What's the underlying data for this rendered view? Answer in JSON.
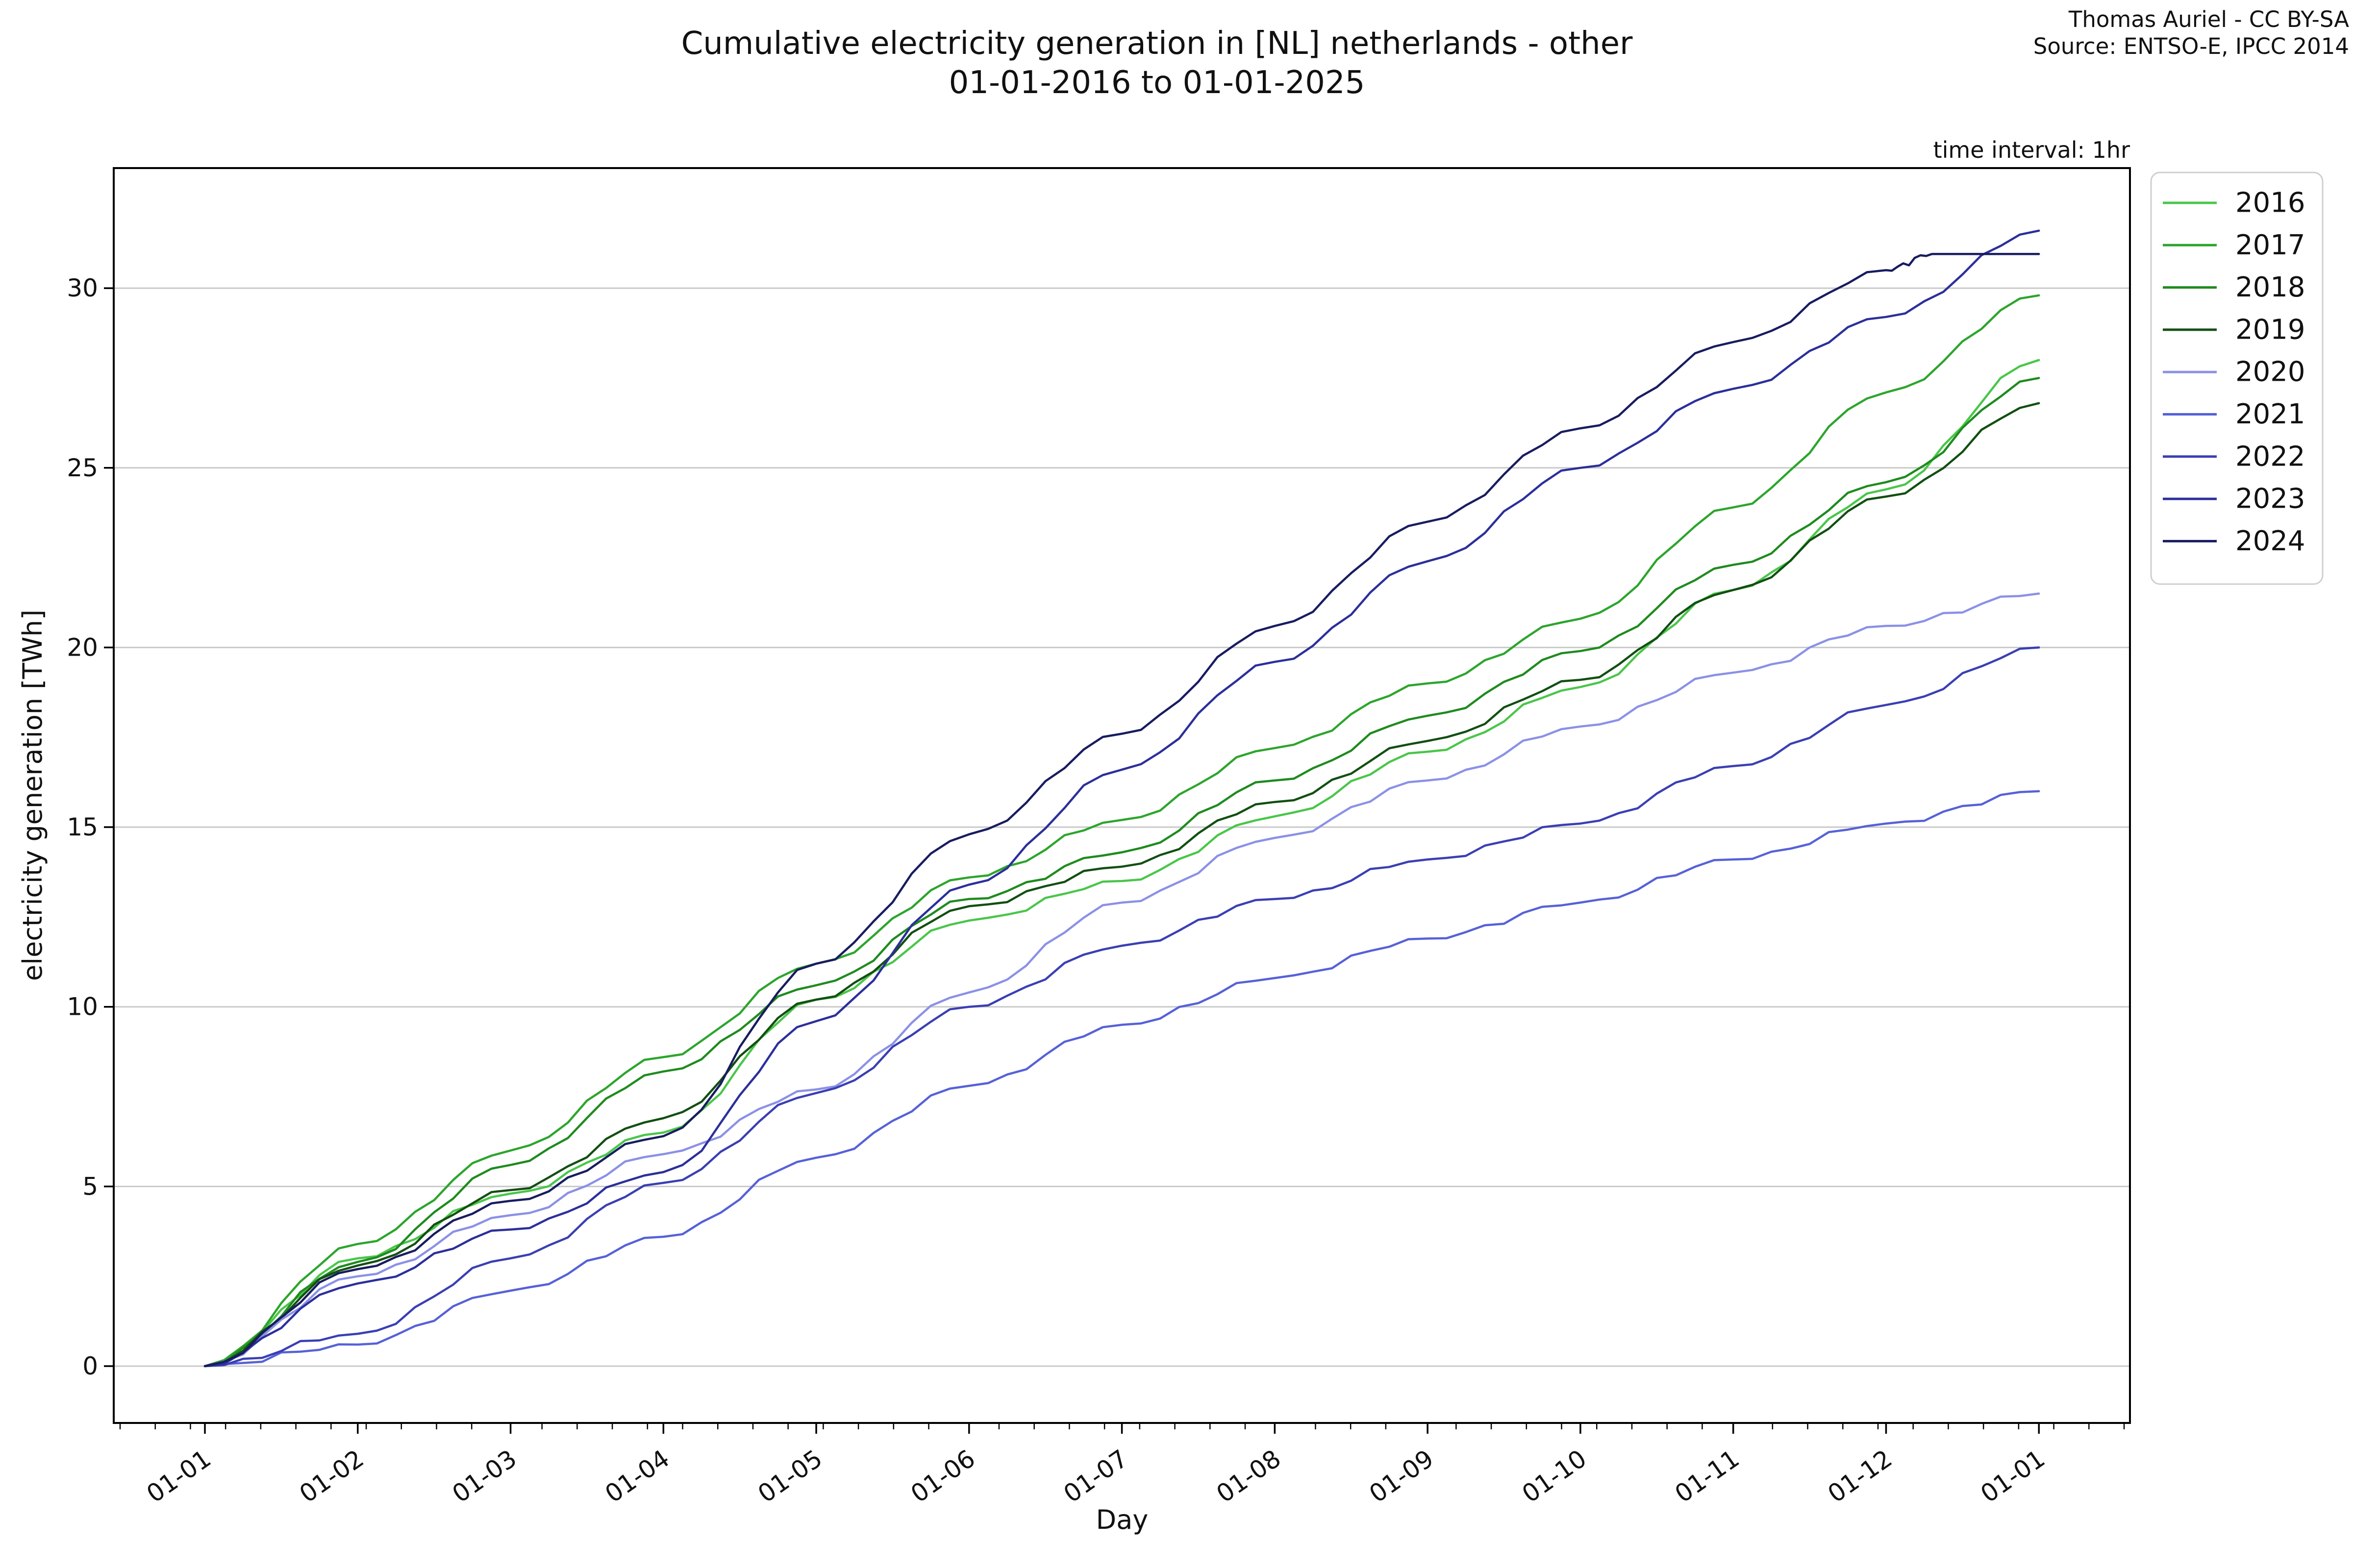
{
  "header": {
    "title_line1": "Cumulative electricity generation in [NL] netherlands - other",
    "title_line2": "01-01-2016 to 01-01-2025",
    "attribution_line1": "Thomas Auriel - CC BY-SA",
    "attribution_line2": "Source: ENTSO-E, IPCC 2014",
    "time_interval_note": "time interval: 1hr"
  },
  "chart_data": {
    "type": "line",
    "title": "Cumulative electricity generation in [NL] netherlands - other 01-01-2016 to 01-01-2025",
    "xlabel": "Day",
    "ylabel": "electricity generation [TWh]",
    "x_tick_labels": [
      "01-01",
      "01-02",
      "01-03",
      "01-04",
      "01-05",
      "01-06",
      "01-07",
      "01-08",
      "01-09",
      "01-10",
      "01-11",
      "01-12",
      "01-01"
    ],
    "y_ticks": [
      0,
      5,
      10,
      15,
      20,
      25,
      30
    ],
    "ylim": [
      -1.58,
      33.23
    ],
    "xlim_months": [
      -0.59,
      12.59
    ],
    "grid": "horizontal",
    "legend_position": "outside upper right",
    "axis_color": "#000000",
    "grid_color": "#c9c9c9",
    "series": [
      {
        "name": "2016",
        "color": "#49c649",
        "x_months": [
          0,
          1,
          2,
          3,
          4,
          5,
          6,
          7,
          8,
          9,
          10,
          11,
          12
        ],
        "values": [
          0,
          3.0,
          4.8,
          6.5,
          10.2,
          12.4,
          13.5,
          15.3,
          17.1,
          18.9,
          21.6,
          24.4,
          28.0
        ]
      },
      {
        "name": "2017",
        "color": "#2ca52c",
        "x_months": [
          0,
          1,
          2,
          3,
          4,
          5,
          6,
          7,
          8,
          9,
          10,
          11,
          12
        ],
        "values": [
          0,
          3.4,
          6.0,
          8.6,
          11.2,
          13.6,
          15.2,
          17.2,
          19.0,
          20.8,
          23.9,
          27.1,
          29.8
        ]
      },
      {
        "name": "2018",
        "color": "#1e8b1e",
        "x_months": [
          0,
          1,
          2,
          3,
          4,
          5,
          6,
          7,
          8,
          9,
          10,
          11,
          12
        ],
        "values": [
          0,
          2.9,
          5.6,
          8.2,
          10.6,
          13.0,
          14.3,
          16.3,
          18.1,
          19.9,
          22.3,
          24.6,
          27.5
        ]
      },
      {
        "name": "2019",
        "color": "#124f12",
        "x_months": [
          0,
          1,
          2,
          3,
          4,
          5,
          6,
          7,
          8,
          9,
          10,
          11,
          12
        ],
        "values": [
          0,
          2.8,
          4.9,
          6.9,
          10.2,
          12.8,
          13.9,
          15.7,
          17.4,
          19.1,
          21.6,
          24.2,
          26.8
        ]
      },
      {
        "name": "2020",
        "color": "#8b91e6",
        "x_months": [
          0,
          1,
          2,
          3,
          4,
          5,
          6,
          7,
          8,
          9,
          10,
          11,
          12
        ],
        "values": [
          0,
          2.5,
          4.2,
          5.9,
          7.7,
          10.4,
          12.9,
          14.7,
          16.3,
          17.8,
          19.3,
          20.6,
          21.5
        ]
      },
      {
        "name": "2021",
        "color": "#5661d8",
        "x_months": [
          0,
          1,
          2,
          3,
          4,
          5,
          6,
          7,
          8,
          9,
          10,
          11,
          12
        ],
        "values": [
          0,
          0.6,
          2.1,
          3.6,
          5.8,
          7.8,
          9.5,
          10.8,
          11.9,
          12.9,
          14.1,
          15.1,
          16.0
        ]
      },
      {
        "name": "2022",
        "color": "#3a3fb3",
        "x_months": [
          0,
          1,
          2,
          3,
          4,
          5,
          6,
          7,
          8,
          9,
          10,
          11,
          12
        ],
        "values": [
          0,
          0.9,
          3.0,
          5.1,
          7.6,
          10.0,
          11.7,
          13.0,
          14.1,
          15.1,
          16.7,
          18.4,
          20.0
        ]
      },
      {
        "name": "2023",
        "color": "#2b2f9b",
        "x_months": [
          0,
          1,
          2,
          3,
          4,
          5,
          6,
          7,
          8,
          9,
          10,
          11,
          12
        ],
        "values": [
          0,
          2.3,
          3.8,
          5.4,
          9.6,
          13.4,
          16.6,
          19.6,
          22.4,
          25.0,
          27.2,
          29.2,
          31.6
        ]
      },
      {
        "name": "2024",
        "color": "#181c5f",
        "x_months": [
          0,
          1,
          2,
          3,
          4,
          5,
          6,
          7,
          8,
          9,
          10,
          11,
          11.3,
          12
        ],
        "values": [
          0,
          2.7,
          4.6,
          6.4,
          11.2,
          14.8,
          17.6,
          20.6,
          23.5,
          26.1,
          28.5,
          30.5,
          30.95,
          30.95
        ]
      }
    ]
  }
}
